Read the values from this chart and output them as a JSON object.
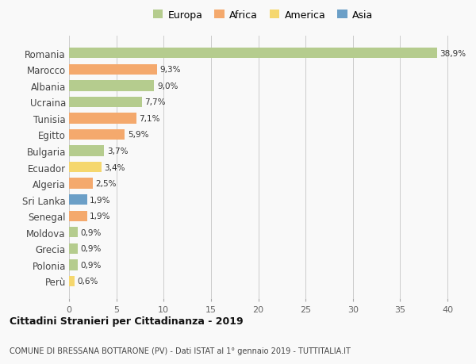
{
  "countries": [
    "Romania",
    "Marocco",
    "Albania",
    "Ucraina",
    "Tunisia",
    "Egitto",
    "Bulgaria",
    "Ecuador",
    "Algeria",
    "Sri Lanka",
    "Senegal",
    "Moldova",
    "Grecia",
    "Polonia",
    "Perù"
  ],
  "values": [
    38.9,
    9.3,
    9.0,
    7.7,
    7.1,
    5.9,
    3.7,
    3.4,
    2.5,
    1.9,
    1.9,
    0.9,
    0.9,
    0.9,
    0.6
  ],
  "labels": [
    "38,9%",
    "9,3%",
    "9,0%",
    "7,7%",
    "7,1%",
    "5,9%",
    "3,7%",
    "3,4%",
    "2,5%",
    "1,9%",
    "1,9%",
    "0,9%",
    "0,9%",
    "0,9%",
    "0,6%"
  ],
  "continents": [
    "Europa",
    "Africa",
    "Europa",
    "Europa",
    "Africa",
    "Africa",
    "Europa",
    "America",
    "Africa",
    "Asia",
    "Africa",
    "Europa",
    "Europa",
    "Europa",
    "America"
  ],
  "colors": {
    "Europa": "#b5cc8e",
    "Africa": "#f4a96d",
    "America": "#f5d76e",
    "Asia": "#6b9fc7"
  },
  "xlim": [
    0,
    41
  ],
  "title": "Cittadini Stranieri per Cittadinanza - 2019",
  "subtitle": "COMUNE DI BRESSANA BOTTARONE (PV) - Dati ISTAT al 1° gennaio 2019 - TUTTITALIA.IT",
  "bg_color": "#f9f9f9",
  "grid_color": "#cccccc",
  "bar_height": 0.65,
  "legend_entries": [
    "Europa",
    "Africa",
    "America",
    "Asia"
  ]
}
